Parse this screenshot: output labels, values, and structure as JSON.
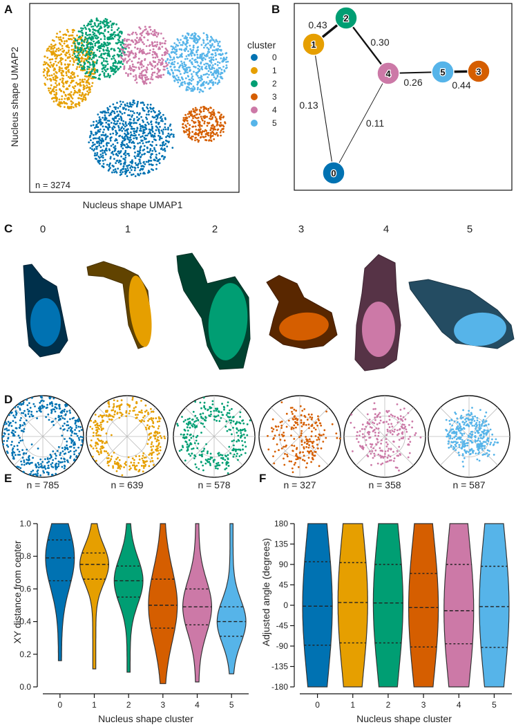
{
  "colors": {
    "c0": "#0072B2",
    "c1": "#E69F00",
    "c2": "#009E73",
    "c3": "#D55E00",
    "c4": "#CC79A7",
    "c5": "#56B4E9"
  },
  "panel_labels": [
    "A",
    "B",
    "C",
    "D",
    "E",
    "F"
  ],
  "chart_data": [
    {
      "id": "A",
      "type": "scatter",
      "xlabel": "Nucleus shape UMAP1",
      "ylabel": "Nucleus shape UMAP2",
      "annotation": "n = 3274",
      "legend": {
        "title": "cluster",
        "entries": [
          "0",
          "1",
          "2",
          "3",
          "4",
          "5"
        ],
        "placement": "right"
      }
    },
    {
      "id": "B",
      "type": "network",
      "nodes": [
        "0",
        "1",
        "2",
        "3",
        "4",
        "5"
      ],
      "edges": [
        {
          "from": "1",
          "to": "2",
          "weight": 0.43,
          "label": "0.43"
        },
        {
          "from": "2",
          "to": "4",
          "weight": 0.3,
          "label": "0.30"
        },
        {
          "from": "4",
          "to": "5",
          "weight": 0.26,
          "label": "0.26"
        },
        {
          "from": "5",
          "to": "3",
          "weight": 0.44,
          "label": "0.44"
        },
        {
          "from": "1",
          "to": "0",
          "weight": 0.13,
          "label": "0.13"
        },
        {
          "from": "4",
          "to": "0",
          "weight": 0.11,
          "label": "0.11"
        }
      ]
    },
    {
      "id": "C",
      "type": "image",
      "titles": [
        "0",
        "1",
        "2",
        "3",
        "4",
        "5"
      ]
    },
    {
      "id": "D",
      "type": "scatter",
      "subtype": "polar",
      "counts": [
        "n = 785",
        "n = 639",
        "n = 578",
        "n = 327",
        "n = 358",
        "n = 587"
      ]
    },
    {
      "id": "E",
      "type": "violin",
      "xlabel": "Nucleus shape cluster",
      "ylabel": "XY distance from center",
      "categories": [
        "0",
        "1",
        "2",
        "3",
        "4",
        "5"
      ],
      "ylim": [
        0.0,
        1.0
      ],
      "yticks": [
        "0.0",
        "0.2",
        "0.4",
        "0.6",
        "0.8",
        "1.0"
      ],
      "ranges": [
        [
          0.16,
          1.0
        ],
        [
          0.11,
          1.0
        ],
        [
          0.09,
          1.0
        ],
        [
          0.02,
          1.0
        ],
        [
          0.03,
          1.0
        ],
        [
          0.08,
          1.0
        ]
      ],
      "quartiles": [
        [
          0.65,
          0.79,
          0.9
        ],
        [
          0.66,
          0.75,
          0.82
        ],
        [
          0.55,
          0.65,
          0.74
        ],
        [
          0.36,
          0.5,
          0.66
        ],
        [
          0.38,
          0.49,
          0.6
        ],
        [
          0.31,
          0.4,
          0.49
        ]
      ]
    },
    {
      "id": "F",
      "type": "violin",
      "xlabel": "Nucleus shape cluster",
      "ylabel": "Adjusted angle (degrees)",
      "categories": [
        "0",
        "1",
        "2",
        "3",
        "4",
        "5"
      ],
      "ylim": [
        -180,
        180
      ],
      "yticks": [
        "180",
        "135",
        "90",
        "45",
        "0",
        "-45",
        "-90",
        "-135",
        "-180"
      ],
      "ranges": [
        [
          -180,
          180
        ],
        [
          -180,
          180
        ],
        [
          -180,
          180
        ],
        [
          -180,
          180
        ],
        [
          -180,
          180
        ],
        [
          -180,
          180
        ]
      ],
      "quartiles": [
        [
          -88,
          -2,
          96
        ],
        [
          -83,
          6,
          94
        ],
        [
          -83,
          5,
          90
        ],
        [
          -92,
          -5,
          70
        ],
        [
          -85,
          -12,
          90
        ],
        [
          -93,
          -3,
          86
        ]
      ]
    }
  ]
}
